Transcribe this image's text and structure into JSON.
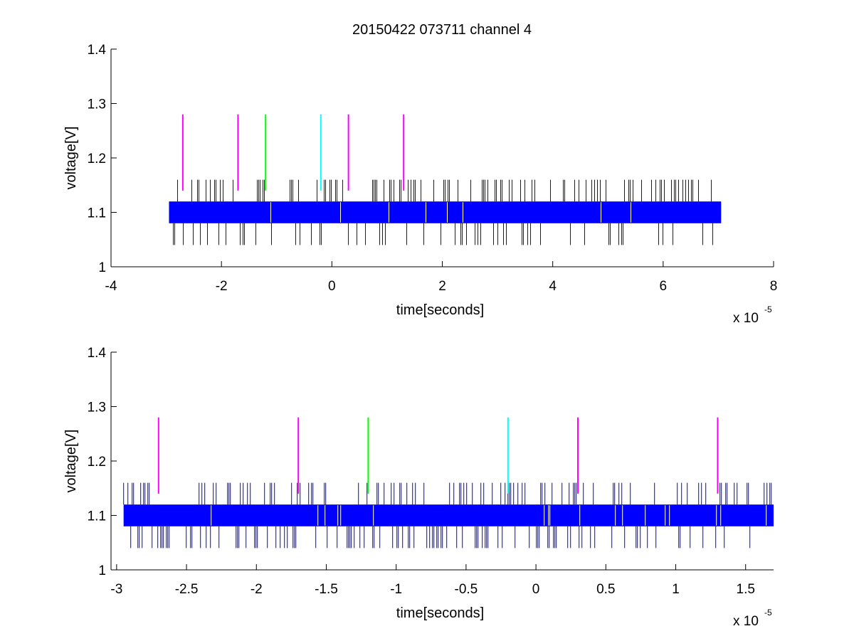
{
  "figure": {
    "title": "20150422 073711 channel 4",
    "background": "#ffffff"
  },
  "chart_data": [
    {
      "type": "line",
      "xlabel": "time[seconds]",
      "ylabel": "voltage[V]",
      "x_exponent_base": "x 10",
      "x_exponent_power": "-5",
      "xlim": [
        -4,
        8
      ],
      "ylim": [
        1,
        1.4
      ],
      "x_ticks": [
        -4,
        -2,
        0,
        2,
        4,
        6,
        8
      ],
      "x_tick_labels": [
        "-4",
        "-2",
        "0",
        "2",
        "4",
        "6",
        "8"
      ],
      "y_ticks": [
        1,
        1.1,
        1.2,
        1.3,
        1.4
      ],
      "y_tick_labels": [
        "1",
        "1.1",
        "1.2",
        "1.3",
        "1.4"
      ],
      "grid": false,
      "series": [
        {
          "color": "#0000ff",
          "style": "dense-noise",
          "x_range": [
            -2.95,
            7.05
          ],
          "band": [
            1.08,
            1.12
          ],
          "spike_high": 1.16,
          "spike_low": 1.04
        }
      ],
      "markers": [
        {
          "x": -2.7,
          "color": "#ff00ff",
          "y_range": [
            1.14,
            1.28
          ]
        },
        {
          "x": -1.7,
          "color": "#ff00ff",
          "y_range": [
            1.14,
            1.28
          ]
        },
        {
          "x": -1.2,
          "color": "#00ff00",
          "y_range": [
            1.14,
            1.28
          ]
        },
        {
          "x": -0.2,
          "color": "#00ffff",
          "y_range": [
            1.14,
            1.28
          ]
        },
        {
          "x": 0.3,
          "color": "#ff00ff",
          "y_range": [
            1.14,
            1.28
          ]
        },
        {
          "x": 1.3,
          "color": "#ff00ff",
          "y_range": [
            1.14,
            1.28
          ]
        }
      ]
    },
    {
      "type": "line",
      "xlabel": "time[seconds]",
      "ylabel": "voltage[V]",
      "x_exponent_base": "x 10",
      "x_exponent_power": "-5",
      "xlim": [
        -3.04,
        1.7
      ],
      "ylim": [
        1,
        1.4
      ],
      "x_ticks": [
        -3,
        -2.5,
        -2,
        -1.5,
        -1,
        -0.5,
        0,
        0.5,
        1,
        1.5
      ],
      "x_tick_labels": [
        "-3",
        "-2.5",
        "-2",
        "-1.5",
        "-1",
        "-0.5",
        "0",
        "0.5",
        "1",
        "1.5"
      ],
      "y_ticks": [
        1,
        1.1,
        1.2,
        1.3,
        1.4
      ],
      "y_tick_labels": [
        "1",
        "1.1",
        "1.2",
        "1.3",
        "1.4"
      ],
      "grid": false,
      "series": [
        {
          "color": "#0000ff",
          "style": "dense-noise",
          "x_range": [
            -2.95,
            1.7
          ],
          "band": [
            1.08,
            1.12
          ],
          "spike_high": 1.16,
          "spike_low": 1.04
        }
      ],
      "markers": [
        {
          "x": -2.7,
          "color": "#ff00ff",
          "y_range": [
            1.14,
            1.28
          ]
        },
        {
          "x": -1.7,
          "color": "#ff00ff",
          "y_range": [
            1.14,
            1.28
          ]
        },
        {
          "x": -1.2,
          "color": "#00ff00",
          "y_range": [
            1.14,
            1.28
          ]
        },
        {
          "x": -0.2,
          "color": "#00ffff",
          "y_range": [
            1.14,
            1.28
          ]
        },
        {
          "x": 0.3,
          "color": "#ff00ff",
          "y_range": [
            1.14,
            1.28
          ]
        },
        {
          "x": 1.3,
          "color": "#ff00ff",
          "y_range": [
            1.14,
            1.28
          ]
        }
      ]
    }
  ]
}
